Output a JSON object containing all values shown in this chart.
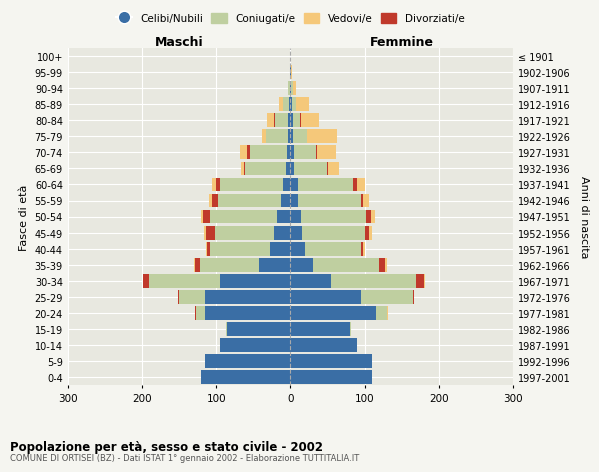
{
  "age_groups": [
    "0-4",
    "5-9",
    "10-14",
    "15-19",
    "20-24",
    "25-29",
    "30-34",
    "35-39",
    "40-44",
    "45-49",
    "50-54",
    "55-59",
    "60-64",
    "65-69",
    "70-74",
    "75-79",
    "80-84",
    "85-89",
    "90-94",
    "95-99",
    "100+"
  ],
  "birth_years": [
    "1997-2001",
    "1992-1996",
    "1987-1991",
    "1982-1986",
    "1977-1981",
    "1972-1976",
    "1967-1971",
    "1962-1966",
    "1957-1961",
    "1952-1956",
    "1947-1951",
    "1942-1946",
    "1937-1941",
    "1932-1936",
    "1927-1931",
    "1922-1926",
    "1917-1921",
    "1912-1916",
    "1907-1911",
    "1902-1906",
    "≤ 1901"
  ],
  "males": {
    "celibi": [
      120,
      115,
      95,
      85,
      115,
      115,
      95,
      42,
      28,
      22,
      18,
      13,
      10,
      6,
      5,
      3,
      3,
      2,
      0,
      0,
      0
    ],
    "coniugati": [
      0,
      0,
      0,
      2,
      12,
      35,
      95,
      80,
      80,
      80,
      90,
      85,
      85,
      55,
      50,
      30,
      18,
      8,
      3,
      0,
      0
    ],
    "vedovi": [
      0,
      0,
      0,
      0,
      0,
      0,
      1,
      1,
      1,
      2,
      3,
      3,
      5,
      5,
      10,
      5,
      10,
      5,
      0,
      0,
      0
    ],
    "divorziati": [
      0,
      0,
      0,
      0,
      1,
      2,
      8,
      7,
      5,
      12,
      10,
      8,
      5,
      1,
      3,
      0,
      1,
      0,
      0,
      0,
      0
    ]
  },
  "females": {
    "nubili": [
      110,
      110,
      90,
      80,
      115,
      95,
      55,
      30,
      20,
      16,
      14,
      10,
      10,
      5,
      5,
      3,
      3,
      2,
      1,
      1,
      0
    ],
    "coniugate": [
      0,
      0,
      0,
      2,
      15,
      70,
      115,
      90,
      75,
      85,
      88,
      85,
      75,
      45,
      30,
      20,
      10,
      5,
      2,
      0,
      0
    ],
    "vedove": [
      0,
      0,
      0,
      0,
      1,
      0,
      1,
      2,
      3,
      4,
      5,
      8,
      10,
      15,
      25,
      40,
      25,
      18,
      5,
      1,
      0
    ],
    "divorziate": [
      0,
      0,
      0,
      0,
      0,
      2,
      10,
      8,
      3,
      5,
      7,
      3,
      5,
      1,
      1,
      0,
      1,
      0,
      0,
      0,
      0
    ]
  },
  "colors": {
    "celibi_nubili": "#3a6ea5",
    "coniugati_e": "#bfcfa0",
    "vedovi_e": "#f5c87a",
    "divorziati_e": "#c0392b"
  },
  "xlim": 300,
  "title": "Popolazione per età, sesso e stato civile - 2002",
  "subtitle": "COMUNE DI ORTISEI (BZ) - Dati ISTAT 1° gennaio 2002 - Elaborazione TUTTITALIA.IT",
  "xlabel_left": "Maschi",
  "xlabel_right": "Femmine",
  "ylabel_left": "Fasce di età",
  "ylabel_right": "Anni di nascita",
  "background_color": "#f5f5f0",
  "plot_bg_color": "#e8e8e0",
  "grid_color": "#ffffff",
  "legend_labels": [
    "Celibi/Nubili",
    "Coniugati/e",
    "Vedovi/e",
    "Divorziati/e"
  ]
}
